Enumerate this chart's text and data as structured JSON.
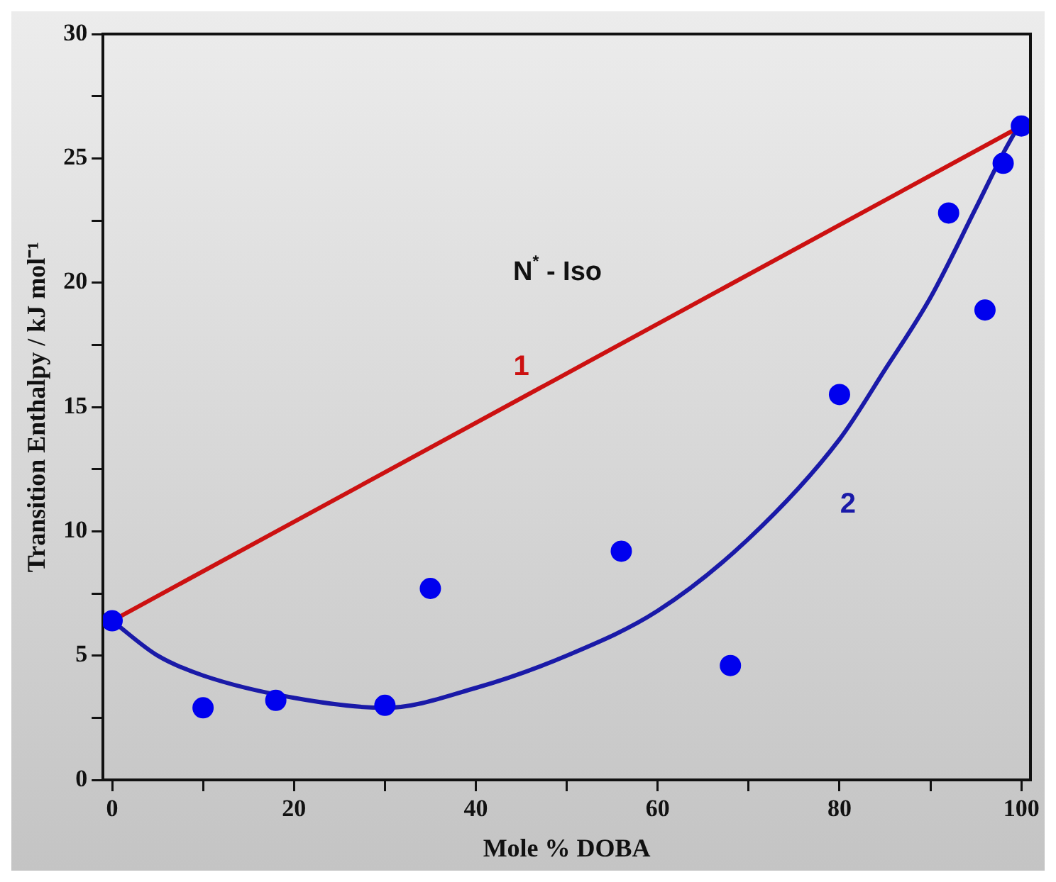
{
  "chart_data": {
    "type": "scatter",
    "xlabel": "Mole % DOBA",
    "ylabel": "Transition Enthalpy / kJ mol⁻¹",
    "xlim": [
      -1,
      101
    ],
    "xticks": [
      0,
      {
        "value": 10,
        "label": null
      },
      20,
      {
        "value": 30,
        "label": null
      },
      40,
      {
        "value": 50,
        "label": null
      },
      60,
      {
        "value": 70,
        "label": null
      },
      80,
      {
        "value": 90,
        "label": null
      },
      100
    ],
    "ylim": [
      0,
      30
    ],
    "yticks": [
      0,
      {
        "value": 2.5,
        "label": null
      },
      5,
      {
        "value": 7.5,
        "label": null
      },
      10,
      {
        "value": 12.5,
        "label": null
      },
      15,
      {
        "value": 17.5,
        "label": null
      },
      20,
      {
        "value": 22.5,
        "label": null
      },
      25,
      {
        "value": 27.5,
        "label": null
      },
      30
    ],
    "grid": false,
    "legend": false,
    "series": [
      {
        "type": "scatter",
        "marker": "circle",
        "color": "#0000ee",
        "x": [
          0,
          10,
          18,
          30,
          35,
          56,
          68,
          80,
          92,
          96,
          98,
          100
        ],
        "values": [
          6.4,
          2.9,
          3.2,
          3.0,
          7.7,
          9.2,
          4.6,
          15.5,
          22.8,
          18.9,
          24.8,
          26.3
        ]
      },
      {
        "type": "line",
        "marker": "none",
        "name": "1",
        "color": "#cc1111",
        "x": [
          0,
          100
        ],
        "values": [
          6.4,
          26.3
        ]
      },
      {
        "type": "line",
        "marker": "none",
        "name": "2",
        "color": "#1a1aa8",
        "x": [
          0,
          5,
          10,
          20,
          30,
          40,
          50,
          60,
          70,
          80,
          85,
          90,
          95,
          98,
          100
        ],
        "values": [
          6.4,
          5.0,
          4.2,
          3.3,
          2.9,
          3.7,
          5.0,
          6.8,
          9.7,
          13.7,
          16.5,
          19.4,
          23.0,
          25.2,
          26.5
        ]
      }
    ],
    "annotations": [
      "N$^{*}$ - Iso"
    ]
  }
}
